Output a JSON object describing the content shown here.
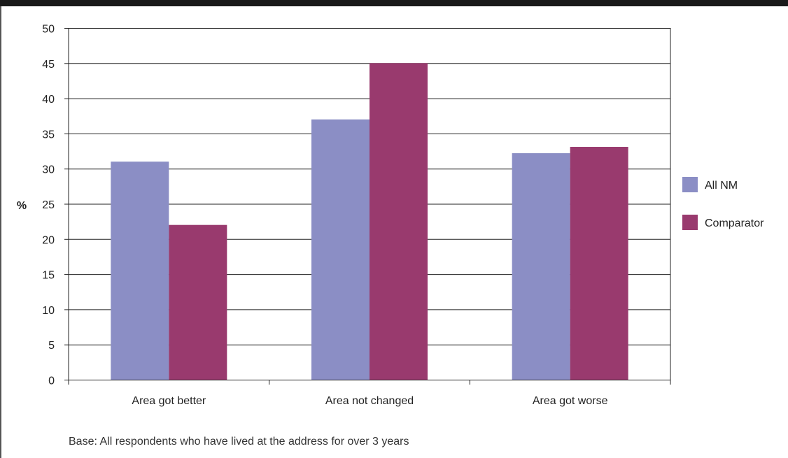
{
  "chart_data": {
    "type": "bar",
    "categories": [
      "Area got better",
      "Area not changed",
      "Area got worse"
    ],
    "series": [
      {
        "name": "All NM",
        "values": [
          31,
          37,
          32.2
        ],
        "color": "#8b8ec5"
      },
      {
        "name": "Comparator",
        "values": [
          22,
          45,
          33.1
        ],
        "color": "#993a6e"
      }
    ],
    "ylabel": "%",
    "xlabel": "",
    "ylim": [
      0,
      50
    ],
    "yticks": [
      0,
      5,
      10,
      15,
      20,
      25,
      30,
      35,
      40,
      45,
      50
    ],
    "grid": true,
    "legend_position": "right"
  },
  "footnote": "Base: All respondents who have lived at the address for over 3 years"
}
